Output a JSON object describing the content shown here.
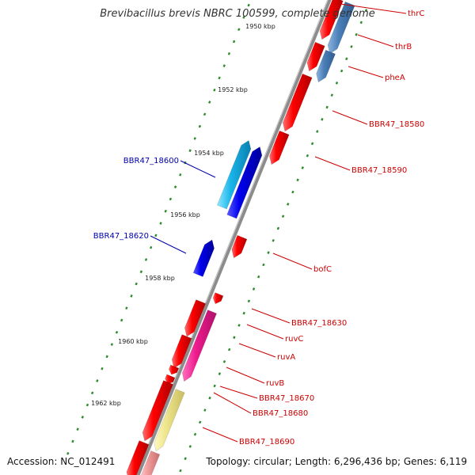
{
  "title": "Brevibacillus brevis NBRC 100599, complete genome",
  "accession_text": "Accession: NC_012491",
  "topology_text": "Topology: circular; Length: 6,296,436 bp; Genes: 6,119",
  "colors": {
    "backbone": "#8c8c8c",
    "tick": "#2e8b2e",
    "forward_gene": "#ee0000",
    "reverse_gene": "#0000ee",
    "label_forward": "#cc0000",
    "label_reverse": "#0000aa",
    "cyan_gene": "#19b5ea",
    "steelblue_gene": "#4a7fb8",
    "magenta_gene": "#ee1a8c",
    "khaki_gene": "#eee48a",
    "pink_gene": "#f09a9a"
  },
  "ticks": [
    "1950 kbp",
    "1952 kbp",
    "1954 kbp",
    "1956 kbp",
    "1958 kbp",
    "1960 kbp",
    "1962 kbp"
  ],
  "gene_labels": [
    {
      "text": "thrC",
      "strand": "forward"
    },
    {
      "text": "thrB",
      "strand": "forward"
    },
    {
      "text": "pheA",
      "strand": "forward"
    },
    {
      "text": "BBR47_18580",
      "strand": "forward"
    },
    {
      "text": "BBR47_18590",
      "strand": "forward"
    },
    {
      "text": "BBR47_18600",
      "strand": "reverse"
    },
    {
      "text": "BBR47_18620",
      "strand": "reverse"
    },
    {
      "text": "bofC",
      "strand": "forward"
    },
    {
      "text": "BBR47_18630",
      "strand": "forward"
    },
    {
      "text": "ruvC",
      "strand": "forward"
    },
    {
      "text": "ruvA",
      "strand": "forward"
    },
    {
      "text": "ruvB",
      "strand": "forward"
    },
    {
      "text": "BBR47_18670",
      "strand": "forward"
    },
    {
      "text": "BBR47_18680",
      "strand": "forward"
    },
    {
      "text": "BBR47_18690",
      "strand": "forward"
    }
  ]
}
